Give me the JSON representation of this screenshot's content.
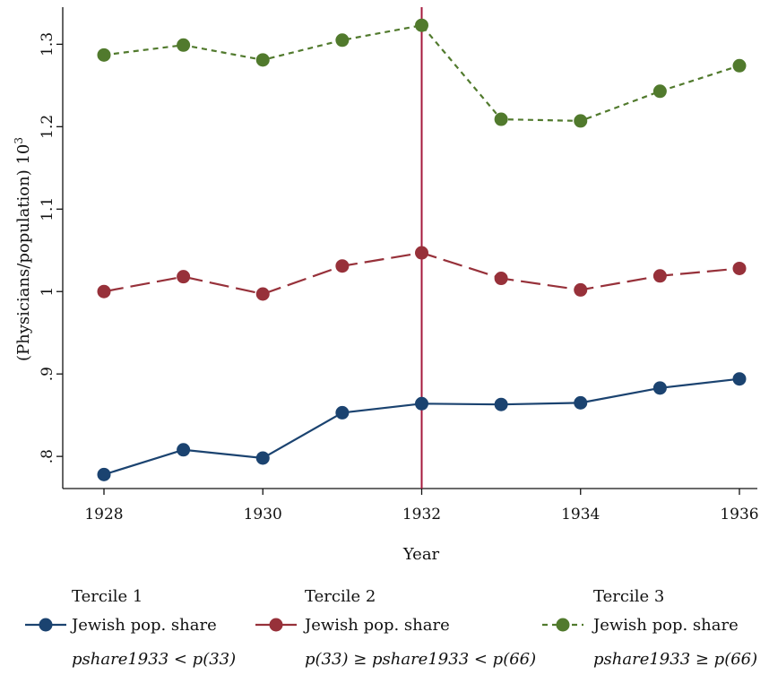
{
  "chart_data": {
    "type": "line",
    "xlabel": "Year",
    "ylabel": "(Physicians/population) 10",
    "ylabel_superscript": "3",
    "x": [
      1928,
      1929,
      1930,
      1931,
      1932,
      1933,
      1934,
      1935,
      1936
    ],
    "xticks": [
      1928,
      1930,
      1932,
      1934,
      1936
    ],
    "xlim": [
      1928,
      1936
    ],
    "yticks": [
      0.8,
      0.9,
      1.0,
      1.1,
      1.2,
      1.3
    ],
    "ytick_labels": [
      ".8",
      ".9",
      "1",
      "1.1",
      "1.2",
      "1.3"
    ],
    "ylim": [
      0.761,
      1.345
    ],
    "grid": false,
    "reference_line": {
      "x": 1932,
      "color": "#a6193c"
    },
    "legend_position": "bottom",
    "series": [
      {
        "legend_title": "Tercile 1",
        "legend_line1": "Jewish pop. share",
        "legend_line2": "pshare1933 < p(33)",
        "color": "#1b4370",
        "style": "solid",
        "values": [
          0.778,
          0.808,
          0.798,
          0.853,
          0.864,
          0.863,
          0.865,
          0.883,
          0.894
        ]
      },
      {
        "legend_title": "Tercile 2",
        "legend_line1": "Jewish pop. share",
        "legend_line2": "p(33) ≥ pshare1933 < p(66)",
        "color": "#97313a",
        "style": "long-dash",
        "values": [
          1.0,
          1.018,
          0.997,
          1.031,
          1.047,
          1.016,
          1.002,
          1.019,
          1.028
        ]
      },
      {
        "legend_title": "Tercile 3",
        "legend_line1": "Jewish pop. share",
        "legend_line2": "pshare1933 ≥ p(66)",
        "color": "#517a2d",
        "style": "short-dash",
        "values": [
          1.287,
          1.299,
          1.281,
          1.305,
          1.323,
          1.209,
          1.207,
          1.243,
          1.274
        ]
      }
    ]
  }
}
